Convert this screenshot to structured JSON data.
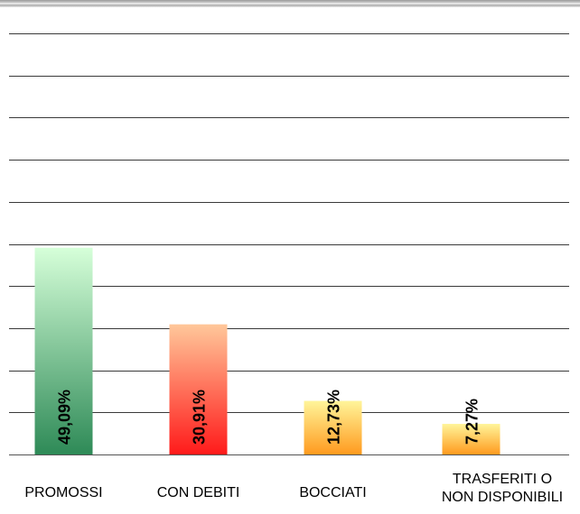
{
  "chart_data": {
    "type": "bar",
    "categories": [
      "PROMOSSI",
      "CON DEBITI",
      "BOCCIATI",
      "TRASFERITI  O\nNON DISPONIBILI"
    ],
    "category_lines": [
      [
        "PROMOSSI"
      ],
      [
        "CON DEBITI"
      ],
      [
        "BOCCIATI"
      ],
      [
        "TRASFERITI  O",
        "NON DISPONIBILI"
      ]
    ],
    "values": [
      49.09,
      30.91,
      12.73,
      7.27
    ],
    "data_labels": [
      "49,09%",
      "30,91%",
      "12,73%",
      "7,27%"
    ],
    "unit": "%",
    "ylim": [
      0,
      100
    ],
    "y_gridlines": 10,
    "grid": true,
    "legend": "none",
    "title": "",
    "xlabel": "",
    "ylabel": "",
    "bar_gradients": [
      {
        "top": "#d6ffd9",
        "bottom": "#2e8a57"
      },
      {
        "top": "#ffc79a",
        "bottom": "#ff1a1a"
      },
      {
        "top": "#fff59a",
        "bottom": "#ff9a1e"
      },
      {
        "top": "#fff59a",
        "bottom": "#ff9a1e"
      }
    ]
  }
}
